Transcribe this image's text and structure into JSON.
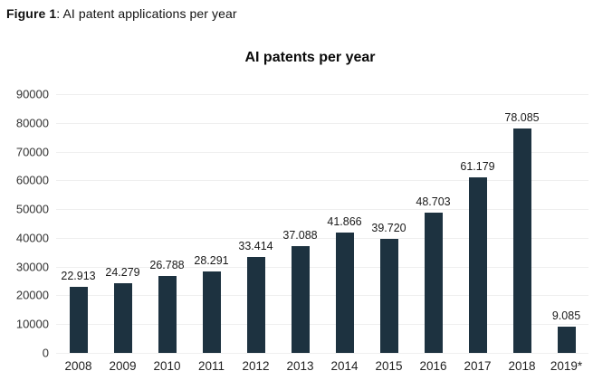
{
  "figure_caption": {
    "prefix": "Figure 1",
    "rest": ": AI patent applications per year"
  },
  "chart_data": {
    "type": "bar",
    "title": "AI patents per year",
    "xlabel": "",
    "ylabel": "",
    "categories": [
      "2008",
      "2009",
      "2010",
      "2011",
      "2012",
      "2013",
      "2014",
      "2015",
      "2016",
      "2017",
      "2018",
      "2019*"
    ],
    "values": [
      22913,
      24279,
      26788,
      28291,
      33414,
      37088,
      41866,
      39720,
      48703,
      61179,
      78085,
      9085
    ],
    "value_labels": [
      "22.913",
      "24.279",
      "26.788",
      "28.291",
      "33.414",
      "37.088",
      "41.866",
      "39.720",
      "48.703",
      "61.179",
      "78.085",
      "9.085"
    ],
    "ylim": [
      0,
      90000
    ],
    "yticks": [
      0,
      10000,
      20000,
      30000,
      40000,
      50000,
      60000,
      70000,
      80000,
      90000
    ],
    "ytick_labels": [
      "0",
      "10000",
      "20000",
      "30000",
      "40000",
      "50000",
      "60000",
      "70000",
      "80000",
      "90000"
    ],
    "grid": true,
    "legend": "none",
    "colors": {
      "bar": "#1d3240",
      "gridline": "#efefef",
      "axis_text": "#333333",
      "title_text": "#0a0a0a",
      "background": "#ffffff"
    }
  }
}
